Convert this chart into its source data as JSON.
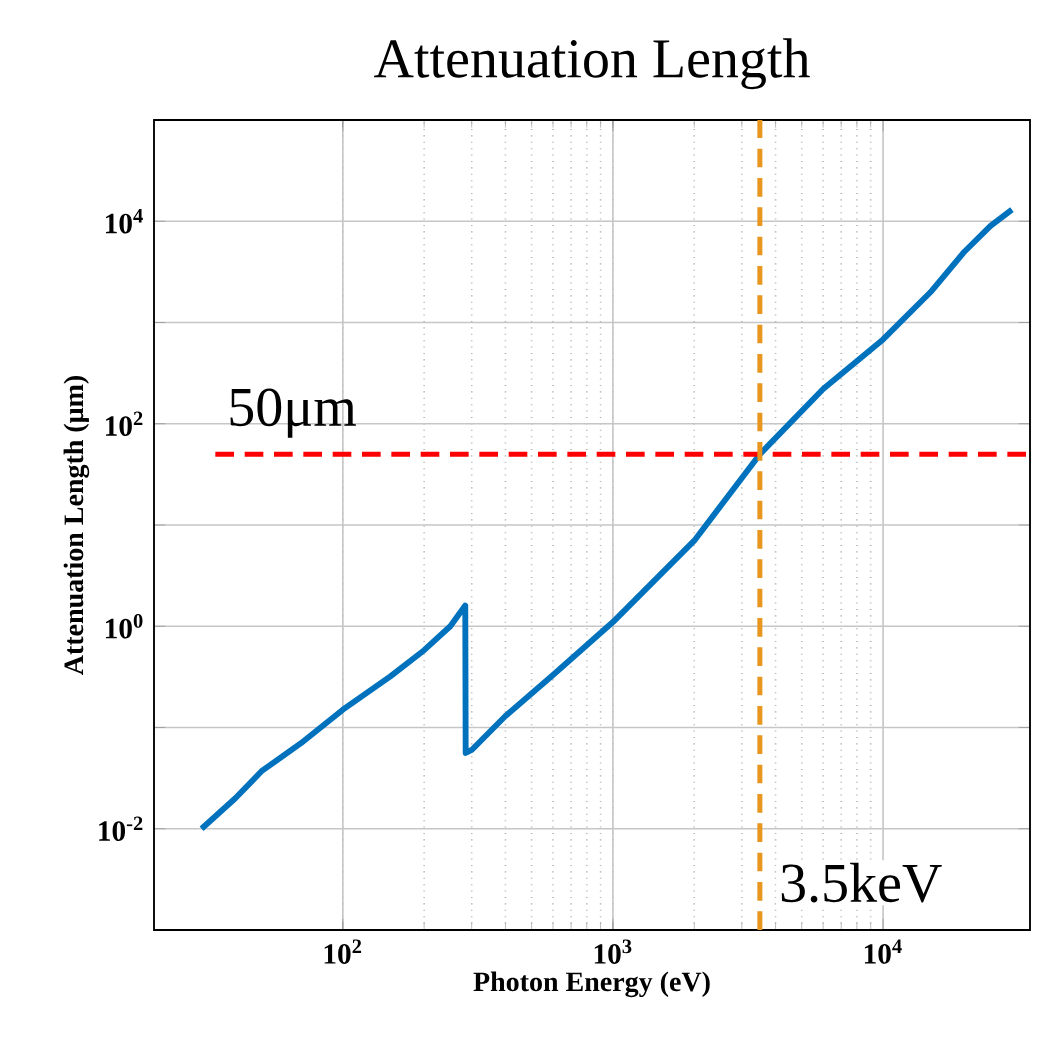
{
  "chart_data": {
    "type": "line",
    "title": "Attenuation Length",
    "xlabel": "Photon Energy (eV)",
    "ylabel": "Attenuation Length (μm)",
    "x": [
      30,
      40,
      50,
      70,
      100,
      150,
      200,
      250,
      284,
      285,
      300,
      400,
      600,
      1000,
      2000,
      3500,
      6000,
      10000,
      15000,
      20000,
      25000,
      30000
    ],
    "series": [
      {
        "color": "#0072bd",
        "values": [
          0.01,
          0.02,
          0.037,
          0.07,
          0.15,
          0.32,
          0.58,
          1.0,
          1.6,
          0.056,
          0.06,
          0.13,
          0.33,
          1.1,
          7,
          50,
          220,
          680,
          2000,
          5000,
          9000,
          13000
        ]
      }
    ],
    "log": "xy",
    "xlim": [
      20,
      35000
    ],
    "ylim": [
      0.001,
      100000
    ],
    "xticks": [
      {
        "value": 100,
        "label": "10$^{2}$"
      },
      {
        "value": 1000,
        "label": "10$^{3}$"
      },
      {
        "value": 10000,
        "label": "10$^{4}$"
      }
    ],
    "yticks": [
      {
        "value": 0.001,
        "label": null
      },
      {
        "value": 0.01,
        "label": "10$^{-2}$"
      },
      {
        "value": 0.1,
        "label": null
      },
      {
        "value": 1,
        "label": "10$^{0}$"
      },
      {
        "value": 10,
        "label": null
      },
      {
        "value": 100,
        "label": "10$^{2}$"
      },
      {
        "value": 1000,
        "label": null
      },
      {
        "value": 10000,
        "label": "10$^{4}$"
      },
      {
        "value": 100000,
        "label": null
      }
    ],
    "grid": true,
    "marker": "none",
    "line_style": "solid",
    "ref_lines": [
      {
        "axis": "y",
        "value": 50,
        "label": "50μm",
        "color": "#ff0000",
        "line_style": "dashed"
      },
      {
        "axis": "x",
        "value": 3500,
        "label": "3.5keV",
        "color": "#e8961e",
        "line_style": "dashed"
      }
    ]
  }
}
